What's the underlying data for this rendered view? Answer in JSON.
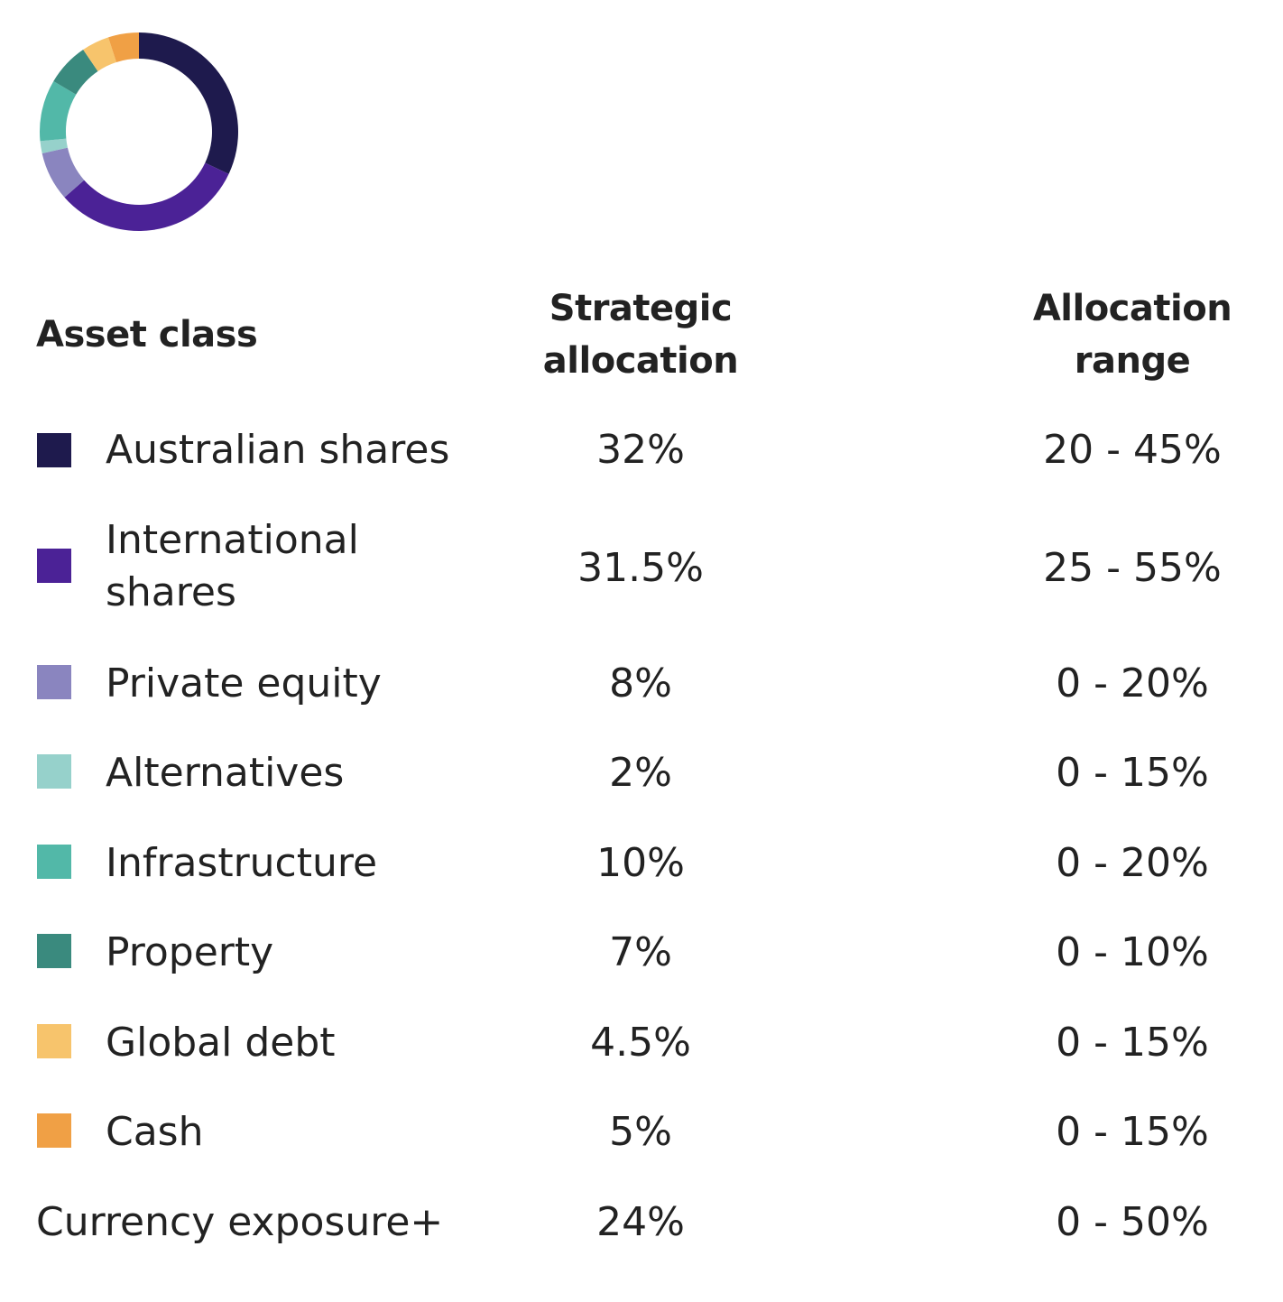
{
  "chart_data": {
    "type": "pie",
    "series": [
      {
        "label": "Australian shares",
        "value": 32,
        "color": "#1e1a4d"
      },
      {
        "label": "International shares",
        "value": 31.5,
        "color": "#4b2296"
      },
      {
        "label": "Private equity",
        "value": 8,
        "color": "#8a85bf"
      },
      {
        "label": "Alternatives",
        "value": 2,
        "color": "#96d1cb"
      },
      {
        "label": "Infrastructure",
        "value": 10,
        "color": "#52b8a8"
      },
      {
        "label": "Property",
        "value": 7,
        "color": "#3a8a7e"
      },
      {
        "label": "Global debt",
        "value": 4.5,
        "color": "#f7c46c"
      },
      {
        "label": "Cash",
        "value": 5,
        "color": "#f0a045"
      }
    ]
  },
  "table": {
    "headers": {
      "asset_class": "Asset class",
      "strategic_line1": "Strategic",
      "strategic_line2": "allocation",
      "range_line1": "Allocation",
      "range_line2": "range"
    },
    "rows": [
      {
        "label": "Australian shares",
        "strategic": "32%",
        "range": "20 - 45%",
        "color": "#1e1a4d"
      },
      {
        "label_line1": "International",
        "label_line2": "shares",
        "strategic": "31.5%",
        "range": "25 - 55%",
        "color": "#4b2296"
      },
      {
        "label": "Private equity",
        "strategic": "8%",
        "range": "0 - 20%",
        "color": "#8a85bf"
      },
      {
        "label": "Alternatives",
        "strategic": "2%",
        "range": "0 - 15%",
        "color": "#96d1cb"
      },
      {
        "label": "Infrastructure",
        "strategic": "10%",
        "range": "0 - 20%",
        "color": "#52b8a8"
      },
      {
        "label": "Property",
        "strategic": "7%",
        "range": "0 - 10%",
        "color": "#3a8a7e"
      },
      {
        "label": "Global debt",
        "strategic": "4.5%",
        "range": "0 - 15%",
        "color": "#f7c46c"
      },
      {
        "label": "Cash",
        "strategic": "5%",
        "range": "0 - 15%",
        "color": "#f0a045"
      }
    ],
    "currency": {
      "label": "Currency exposure+",
      "strategic": "24%",
      "range": "0 - 50%"
    }
  }
}
